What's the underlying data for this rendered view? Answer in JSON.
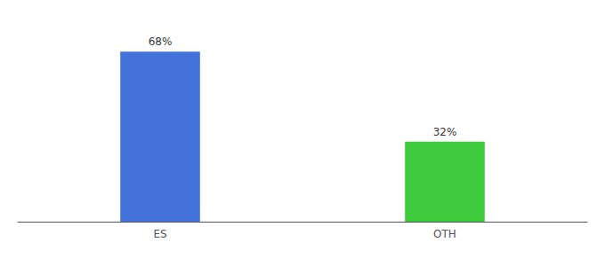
{
  "chart_data": {
    "type": "bar",
    "categories": [
      "ES",
      "OTH"
    ],
    "values": [
      68,
      32
    ],
    "value_labels": [
      "68%",
      "32%"
    ],
    "colors": [
      "#4472db",
      "#3ecc3e"
    ],
    "ylim": [
      0,
      78
    ],
    "data_labels": true,
    "tick_labels": "x",
    "grid": false
  }
}
